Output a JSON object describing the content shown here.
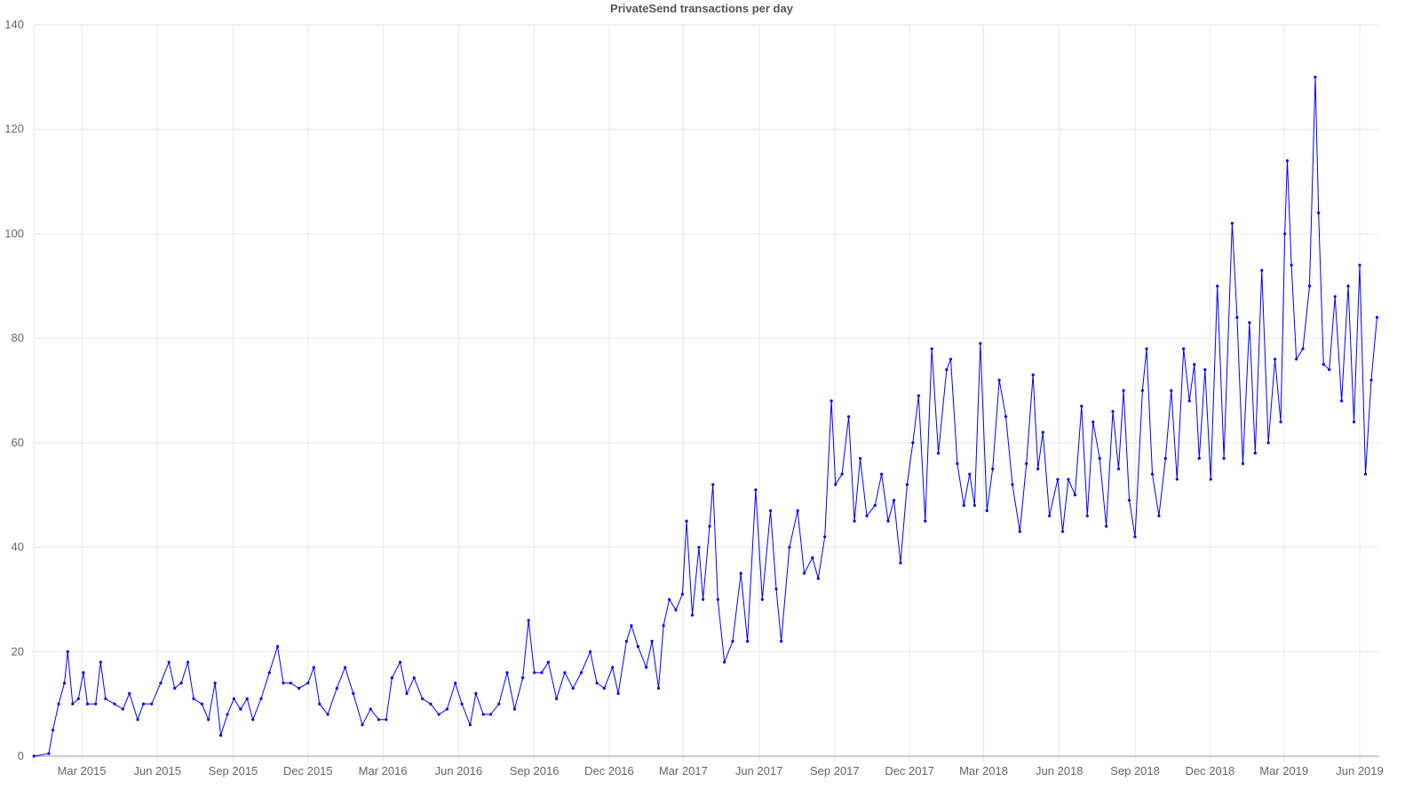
{
  "chart_data": {
    "type": "line",
    "title": "PrivateSend transactions per day",
    "xlabel": "",
    "ylabel": "",
    "ylim": [
      0,
      140
    ],
    "y_ticks": [
      "0",
      "20",
      "40",
      "60",
      "80",
      "100",
      "120",
      "140"
    ],
    "x_ticks": [
      {
        "label": "Mar 2015",
        "date": "2015-03-01"
      },
      {
        "label": "Jun 2015",
        "date": "2015-06-01"
      },
      {
        "label": "Sep 2015",
        "date": "2015-09-01"
      },
      {
        "label": "Dec 2015",
        "date": "2015-12-01"
      },
      {
        "label": "Mar 2016",
        "date": "2016-03-01"
      },
      {
        "label": "Jun 2016",
        "date": "2016-06-01"
      },
      {
        "label": "Sep 2016",
        "date": "2016-09-01"
      },
      {
        "label": "Dec 2016",
        "date": "2016-12-01"
      },
      {
        "label": "Mar 2017",
        "date": "2017-03-01"
      },
      {
        "label": "Jun 2017",
        "date": "2017-06-01"
      },
      {
        "label": "Sep 2017",
        "date": "2017-09-01"
      },
      {
        "label": "Dec 2017",
        "date": "2017-12-01"
      },
      {
        "label": "Mar 2018",
        "date": "2018-03-01"
      },
      {
        "label": "Jun 2018",
        "date": "2018-06-01"
      },
      {
        "label": "Sep 2018",
        "date": "2018-09-01"
      },
      {
        "label": "Dec 2018",
        "date": "2018-12-01"
      },
      {
        "label": "Mar 2019",
        "date": "2019-03-01"
      },
      {
        "label": "Jun 2019",
        "date": "2019-06-01"
      }
    ],
    "xlim": [
      "2015-01-02",
      "2019-06-23"
    ],
    "grid": true,
    "line_color": "#0000ff",
    "series": [
      {
        "points": [
          [
            "2015-01-02",
            0
          ],
          [
            "2015-01-20",
            0.5
          ],
          [
            "2015-01-25",
            5
          ],
          [
            "2015-02-01",
            10
          ],
          [
            "2015-02-08",
            14
          ],
          [
            "2015-02-12",
            20
          ],
          [
            "2015-02-18",
            10
          ],
          [
            "2015-02-25",
            11
          ],
          [
            "2015-03-03",
            16
          ],
          [
            "2015-03-08",
            10
          ],
          [
            "2015-03-18",
            10
          ],
          [
            "2015-03-24",
            18
          ],
          [
            "2015-03-30",
            11
          ],
          [
            "2015-04-10",
            10
          ],
          [
            "2015-04-20",
            9
          ],
          [
            "2015-04-28",
            12
          ],
          [
            "2015-05-08",
            7
          ],
          [
            "2015-05-15",
            10
          ],
          [
            "2015-05-25",
            10
          ],
          [
            "2015-06-05",
            14
          ],
          [
            "2015-06-15",
            18
          ],
          [
            "2015-06-22",
            13
          ],
          [
            "2015-06-30",
            14
          ],
          [
            "2015-07-08",
            18
          ],
          [
            "2015-07-15",
            11
          ],
          [
            "2015-07-25",
            10
          ],
          [
            "2015-08-02",
            7
          ],
          [
            "2015-08-10",
            14
          ],
          [
            "2015-08-17",
            4
          ],
          [
            "2015-08-25",
            8
          ],
          [
            "2015-09-02",
            11
          ],
          [
            "2015-09-10",
            9
          ],
          [
            "2015-09-18",
            11
          ],
          [
            "2015-09-25",
            7
          ],
          [
            "2015-10-05",
            11
          ],
          [
            "2015-10-15",
            16
          ],
          [
            "2015-10-25",
            21
          ],
          [
            "2015-11-01",
            14
          ],
          [
            "2015-11-10",
            14
          ],
          [
            "2015-11-20",
            13
          ],
          [
            "2015-12-01",
            14
          ],
          [
            "2015-12-08",
            17
          ],
          [
            "2015-12-15",
            10
          ],
          [
            "2015-12-25",
            8
          ],
          [
            "2016-01-05",
            13
          ],
          [
            "2016-01-15",
            17
          ],
          [
            "2016-01-25",
            12
          ],
          [
            "2016-02-05",
            6
          ],
          [
            "2016-02-15",
            9
          ],
          [
            "2016-02-25",
            7
          ],
          [
            "2016-03-05",
            7
          ],
          [
            "2016-03-12",
            15
          ],
          [
            "2016-03-22",
            18
          ],
          [
            "2016-03-30",
            12
          ],
          [
            "2016-04-08",
            15
          ],
          [
            "2016-04-18",
            11
          ],
          [
            "2016-04-28",
            10
          ],
          [
            "2016-05-08",
            8
          ],
          [
            "2016-05-18",
            9
          ],
          [
            "2016-05-28",
            14
          ],
          [
            "2016-06-05",
            10
          ],
          [
            "2016-06-15",
            6
          ],
          [
            "2016-06-22",
            12
          ],
          [
            "2016-07-01",
            8
          ],
          [
            "2016-07-10",
            8
          ],
          [
            "2016-07-20",
            10
          ],
          [
            "2016-07-30",
            16
          ],
          [
            "2016-08-08",
            9
          ],
          [
            "2016-08-18",
            15
          ],
          [
            "2016-08-25",
            26
          ],
          [
            "2016-09-01",
            16
          ],
          [
            "2016-09-10",
            16
          ],
          [
            "2016-09-18",
            18
          ],
          [
            "2016-09-28",
            11
          ],
          [
            "2016-10-08",
            16
          ],
          [
            "2016-10-18",
            13
          ],
          [
            "2016-10-28",
            16
          ],
          [
            "2016-11-08",
            20
          ],
          [
            "2016-11-16",
            14
          ],
          [
            "2016-11-25",
            13
          ],
          [
            "2016-12-05",
            17
          ],
          [
            "2016-12-12",
            12
          ],
          [
            "2016-12-22",
            22
          ],
          [
            "2016-12-28",
            25
          ],
          [
            "2017-01-05",
            21
          ],
          [
            "2017-01-15",
            17
          ],
          [
            "2017-01-22",
            22
          ],
          [
            "2017-01-30",
            13
          ],
          [
            "2017-02-05",
            25
          ],
          [
            "2017-02-12",
            30
          ],
          [
            "2017-02-20",
            28
          ],
          [
            "2017-02-28",
            31
          ],
          [
            "2017-03-05",
            45
          ],
          [
            "2017-03-12",
            27
          ],
          [
            "2017-03-20",
            40
          ],
          [
            "2017-03-25",
            30
          ],
          [
            "2017-04-02",
            44
          ],
          [
            "2017-04-06",
            52
          ],
          [
            "2017-04-12",
            30
          ],
          [
            "2017-04-20",
            18
          ],
          [
            "2017-04-30",
            22
          ],
          [
            "2017-05-10",
            35
          ],
          [
            "2017-05-18",
            22
          ],
          [
            "2017-05-28",
            51
          ],
          [
            "2017-06-05",
            30
          ],
          [
            "2017-06-15",
            47
          ],
          [
            "2017-06-22",
            32
          ],
          [
            "2017-06-28",
            22
          ],
          [
            "2017-07-08",
            40
          ],
          [
            "2017-07-18",
            47
          ],
          [
            "2017-07-26",
            35
          ],
          [
            "2017-08-05",
            38
          ],
          [
            "2017-08-12",
            34
          ],
          [
            "2017-08-20",
            42
          ],
          [
            "2017-08-28",
            68
          ],
          [
            "2017-09-02",
            52
          ],
          [
            "2017-09-10",
            54
          ],
          [
            "2017-09-18",
            65
          ],
          [
            "2017-09-25",
            45
          ],
          [
            "2017-10-02",
            57
          ],
          [
            "2017-10-10",
            46
          ],
          [
            "2017-10-20",
            48
          ],
          [
            "2017-10-28",
            54
          ],
          [
            "2017-11-05",
            45
          ],
          [
            "2017-11-12",
            49
          ],
          [
            "2017-11-20",
            37
          ],
          [
            "2017-11-28",
            52
          ],
          [
            "2017-12-05",
            60
          ],
          [
            "2017-12-12",
            69
          ],
          [
            "2017-12-20",
            45
          ],
          [
            "2017-12-28",
            78
          ],
          [
            "2018-01-05",
            58
          ],
          [
            "2018-01-15",
            74
          ],
          [
            "2018-01-20",
            76
          ],
          [
            "2018-01-28",
            56
          ],
          [
            "2018-02-05",
            48
          ],
          [
            "2018-02-12",
            54
          ],
          [
            "2018-02-18",
            48
          ],
          [
            "2018-02-25",
            79
          ],
          [
            "2018-03-05",
            47
          ],
          [
            "2018-03-12",
            55
          ],
          [
            "2018-03-20",
            72
          ],
          [
            "2018-03-28",
            65
          ],
          [
            "2018-04-05",
            52
          ],
          [
            "2018-04-14",
            43
          ],
          [
            "2018-04-22",
            56
          ],
          [
            "2018-04-30",
            73
          ],
          [
            "2018-05-06",
            55
          ],
          [
            "2018-05-12",
            62
          ],
          [
            "2018-05-20",
            46
          ],
          [
            "2018-05-30",
            53
          ],
          [
            "2018-06-05",
            43
          ],
          [
            "2018-06-12",
            53
          ],
          [
            "2018-06-20",
            50
          ],
          [
            "2018-06-28",
            67
          ],
          [
            "2018-07-05",
            46
          ],
          [
            "2018-07-12",
            64
          ],
          [
            "2018-07-20",
            57
          ],
          [
            "2018-07-28",
            44
          ],
          [
            "2018-08-05",
            66
          ],
          [
            "2018-08-12",
            55
          ],
          [
            "2018-08-18",
            70
          ],
          [
            "2018-08-25",
            49
          ],
          [
            "2018-09-01",
            42
          ],
          [
            "2018-09-10",
            70
          ],
          [
            "2018-09-15",
            78
          ],
          [
            "2018-09-22",
            54
          ],
          [
            "2018-09-30",
            46
          ],
          [
            "2018-10-08",
            57
          ],
          [
            "2018-10-15",
            70
          ],
          [
            "2018-10-22",
            53
          ],
          [
            "2018-10-30",
            78
          ],
          [
            "2018-11-06",
            68
          ],
          [
            "2018-11-12",
            75
          ],
          [
            "2018-11-18",
            57
          ],
          [
            "2018-11-25",
            74
          ],
          [
            "2018-12-02",
            53
          ],
          [
            "2018-12-10",
            90
          ],
          [
            "2018-12-18",
            57
          ],
          [
            "2018-12-28",
            102
          ],
          [
            "2019-01-03",
            84
          ],
          [
            "2019-01-10",
            56
          ],
          [
            "2019-01-18",
            83
          ],
          [
            "2019-01-25",
            58
          ],
          [
            "2019-02-02",
            93
          ],
          [
            "2019-02-10",
            60
          ],
          [
            "2019-02-18",
            76
          ],
          [
            "2019-02-25",
            64
          ],
          [
            "2019-03-02",
            100
          ],
          [
            "2019-03-05",
            114
          ],
          [
            "2019-03-10",
            94
          ],
          [
            "2019-03-16",
            76
          ],
          [
            "2019-03-24",
            78
          ],
          [
            "2019-04-01",
            90
          ],
          [
            "2019-04-08",
            130
          ],
          [
            "2019-04-12",
            104
          ],
          [
            "2019-04-18",
            75
          ],
          [
            "2019-04-25",
            74
          ],
          [
            "2019-05-02",
            88
          ],
          [
            "2019-05-10",
            68
          ],
          [
            "2019-05-18",
            90
          ],
          [
            "2019-05-25",
            64
          ],
          [
            "2019-06-01",
            94
          ],
          [
            "2019-06-08",
            54
          ],
          [
            "2019-06-15",
            72
          ],
          [
            "2019-06-22",
            84
          ]
        ]
      }
    ]
  }
}
